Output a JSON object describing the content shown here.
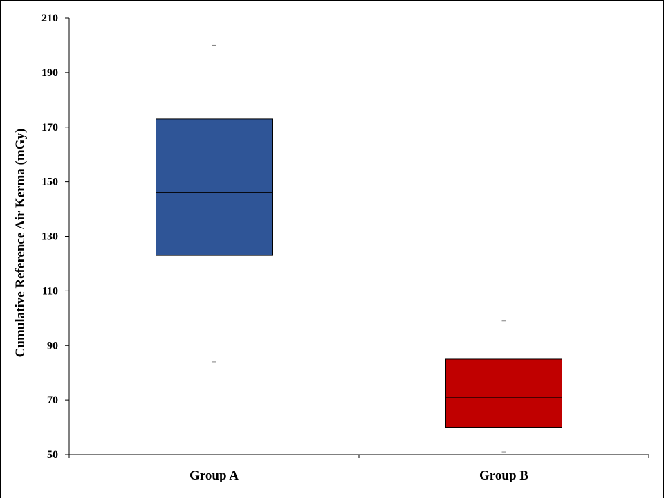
{
  "chart_data": {
    "type": "box",
    "title": "",
    "xlabel": "",
    "ylabel": "Cumulative Reference Air Kerma  (mGy)",
    "ylim": [
      50,
      210
    ],
    "yticks": [
      50,
      70,
      90,
      110,
      130,
      150,
      170,
      190,
      210
    ],
    "grid": false,
    "categories": [
      "Group A",
      "Group B"
    ],
    "boxes": [
      {
        "category": "Group A",
        "min": 84,
        "q1": 123,
        "median": 146,
        "q3": 173,
        "max": 200,
        "color": "#2F5597"
      },
      {
        "category": "Group B",
        "min": 51,
        "q1": 60,
        "median": 71,
        "q3": 85,
        "max": 99,
        "color": "#C00000"
      }
    ]
  }
}
